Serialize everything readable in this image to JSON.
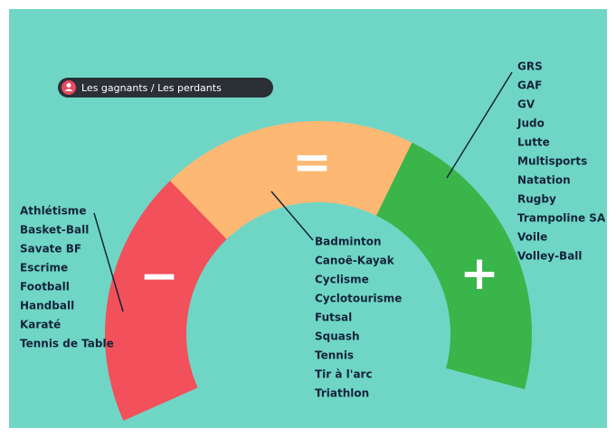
{
  "badge": {
    "label": "Les gagnants / Les perdants"
  },
  "segments": [
    {
      "symbol": "−",
      "items": [
        "Athlétisme",
        "Basket-Ball",
        "Savate BF",
        "Escrime",
        "Football",
        "Handball",
        "Karaté",
        "Tennis de Table"
      ]
    },
    {
      "symbol": "=",
      "items": [
        "Badminton",
        "Canoë-Kayak",
        "Cyclisme",
        "Cyclotourisme",
        "Futsal",
        "Squash",
        "Tennis",
        "Tir à l'arc",
        "Triathlon"
      ]
    },
    {
      "symbol": "+",
      "items": [
        "GRS",
        "GAF",
        "GV",
        "Judo",
        "Lutte",
        "Multisports",
        "Natation",
        "Rugby",
        "Trampoline SA",
        "Voile",
        "Volley-Ball"
      ]
    }
  ]
}
